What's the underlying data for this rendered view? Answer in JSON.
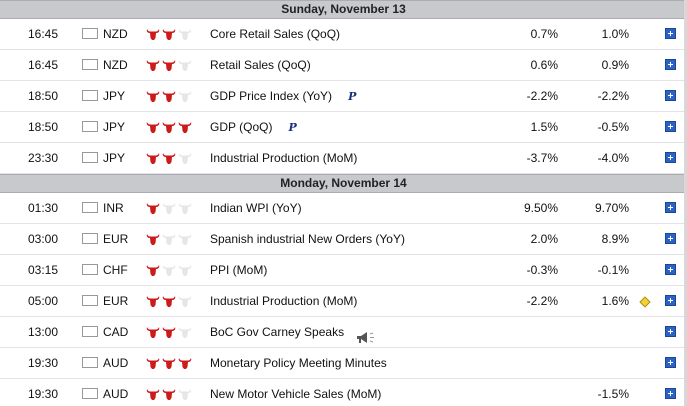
{
  "colors": {
    "separator_bg": "#c7c9cc",
    "bull_active": "#cc1b1b",
    "bull_inactive": "#e6e6e6",
    "plus_button": "#2b62c4",
    "revised_marker": "#f2d23a"
  },
  "calendar": {
    "days": [
      {
        "label": "Sunday, November 13",
        "events": [
          {
            "time": "16:45",
            "currency": "NZD",
            "flag": "nz",
            "impact": 2,
            "name": "Core Retail Sales (QoQ)",
            "actual": "0.7%",
            "forecast": "1.0%",
            "preliminary": false,
            "revised": false,
            "speech": false
          },
          {
            "time": "16:45",
            "currency": "NZD",
            "flag": "nz",
            "impact": 2,
            "name": "Retail Sales (QoQ)",
            "actual": "0.6%",
            "forecast": "0.9%",
            "preliminary": false,
            "revised": false,
            "speech": false
          },
          {
            "time": "18:50",
            "currency": "JPY",
            "flag": "jp",
            "impact": 2,
            "name": "GDP Price Index (YoY)",
            "actual": "-2.2%",
            "forecast": "-2.2%",
            "preliminary": true,
            "preliminary_mark": "P",
            "revised": false,
            "speech": false
          },
          {
            "time": "18:50",
            "currency": "JPY",
            "flag": "jp",
            "impact": 3,
            "name": "GDP (QoQ)",
            "actual": "1.5%",
            "forecast": "-0.5%",
            "preliminary": true,
            "preliminary_mark": "P",
            "revised": false,
            "speech": false
          },
          {
            "time": "23:30",
            "currency": "JPY",
            "flag": "jp",
            "impact": 2,
            "name": "Industrial Production (MoM)",
            "actual": "-3.7%",
            "forecast": "-4.0%",
            "preliminary": false,
            "revised": false,
            "speech": false
          }
        ]
      },
      {
        "label": "Monday, November 14",
        "events": [
          {
            "time": "01:30",
            "currency": "INR",
            "flag": "in",
            "impact": 1,
            "name": "Indian WPI (YoY)",
            "actual": "9.50%",
            "forecast": "9.70%",
            "preliminary": false,
            "revised": false,
            "speech": false
          },
          {
            "time": "03:00",
            "currency": "EUR",
            "flag": "es",
            "impact": 1,
            "name": "Spanish industrial New Orders (YoY)",
            "actual": "2.0%",
            "forecast": "8.9%",
            "preliminary": false,
            "revised": false,
            "speech": false
          },
          {
            "time": "03:15",
            "currency": "CHF",
            "flag": "ch",
            "impact": 1,
            "name": "PPI (MoM)",
            "actual": "-0.3%",
            "forecast": "-0.1%",
            "preliminary": false,
            "revised": false,
            "speech": false
          },
          {
            "time": "05:00",
            "currency": "EUR",
            "flag": "eu",
            "impact": 2,
            "name": "Industrial Production (MoM)",
            "actual": "-2.2%",
            "forecast": "1.6%",
            "preliminary": false,
            "revised": true,
            "speech": false
          },
          {
            "time": "13:00",
            "currency": "CAD",
            "flag": "ca",
            "impact": 2,
            "name": "BoC Gov Carney Speaks",
            "actual": "",
            "forecast": "",
            "preliminary": false,
            "revised": false,
            "speech": true
          },
          {
            "time": "19:30",
            "currency": "AUD",
            "flag": "au",
            "impact": 3,
            "name": "Monetary Policy Meeting Minutes",
            "actual": "",
            "forecast": "",
            "preliminary": false,
            "revised": false,
            "speech": false
          },
          {
            "time": "19:30",
            "currency": "AUD",
            "flag": "au",
            "impact": 2,
            "name": "New Motor Vehicle Sales (MoM)",
            "actual": "",
            "forecast": "-1.5%",
            "preliminary": false,
            "revised": false,
            "speech": false
          }
        ]
      }
    ]
  }
}
